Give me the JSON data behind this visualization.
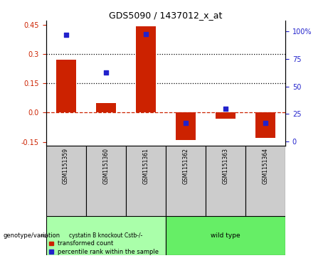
{
  "title": "GDS5090 / 1437012_x_at",
  "samples": [
    "GSM1151359",
    "GSM1151360",
    "GSM1151361",
    "GSM1151362",
    "GSM1151363",
    "GSM1151364"
  ],
  "transformed_counts": [
    0.27,
    0.05,
    0.44,
    -0.14,
    -0.03,
    -0.13
  ],
  "percentile_ranks": [
    97,
    63,
    98,
    17,
    30,
    17
  ],
  "ylim_left": [
    -0.17,
    0.47
  ],
  "ylim_right": [
    -4,
    110
  ],
  "yticks_left": [
    -0.15,
    0.0,
    0.15,
    0.3,
    0.45
  ],
  "yticks_right": [
    0,
    25,
    50,
    75,
    100
  ],
  "hlines": [
    0.0,
    0.15,
    0.3
  ],
  "hline_styles": [
    "--",
    ":",
    ":"
  ],
  "hline_colors": [
    "#cc2200",
    "#000000",
    "#000000"
  ],
  "bar_color": "#cc2200",
  "dot_color": "#2222cc",
  "bar_width": 0.5,
  "group1_label": "cystatin B knockout Cstb-/-",
  "group2_label": "wild type",
  "group1_color": "#aaffaa",
  "group2_color": "#66ee66",
  "group1_indices": [
    0,
    1,
    2
  ],
  "group2_indices": [
    3,
    4,
    5
  ],
  "genotype_label": "genotype/variation",
  "legend1_label": "transformed count",
  "legend2_label": "percentile rank within the sample",
  "bg_color": "#ffffff",
  "sample_box_color": "#cccccc",
  "tick_label_color_left": "#cc2200",
  "tick_label_color_right": "#2222cc",
  "right_tick_labels": [
    "0",
    "25",
    "50",
    "75",
    "100%"
  ]
}
